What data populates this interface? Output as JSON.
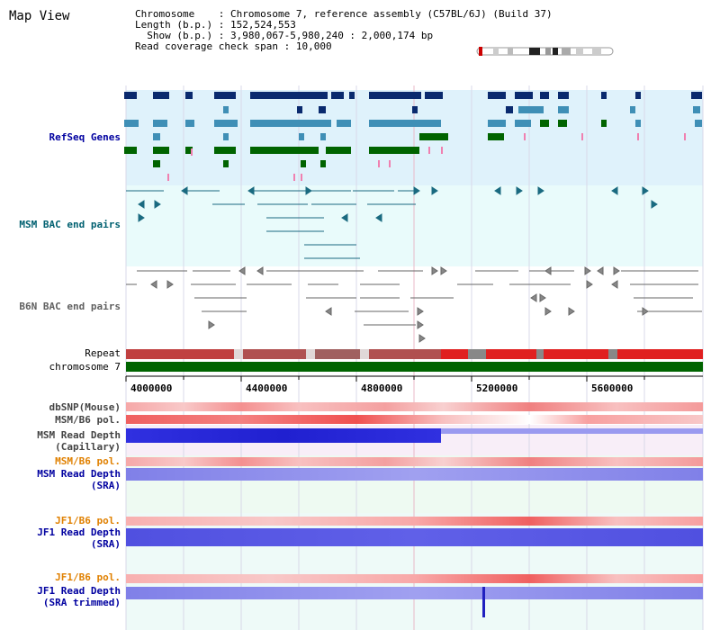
{
  "title": "Map View",
  "info": {
    "chrom_key": "Chromosome",
    "chrom_val": "Chromosome 7, reference assembly (C57BL/6J) (Build 37)",
    "length_key": "Length (b.p.)",
    "length_val": "152,524,553",
    "show_key": "Show (b.p.)",
    "show_val": "3,980,067-5,980,240 : 2,000,174 bp",
    "span_key": "Read coverage check span",
    "span_val": "10,000"
  },
  "tracks": {
    "refseq": "RefSeq Genes",
    "msm_bac": "MSM BAC end pairs",
    "b6n_bac": "B6N BAC end pairs",
    "repeat": "Repeat",
    "chromosome": "chromosome 7",
    "dbsnp": "dbSNP(Mouse)",
    "msm_b6_pol_1": "MSM/B6 pol.",
    "msm_depth_cap_1": "MSM Read Depth",
    "msm_depth_cap_2": "(Capillary)",
    "msm_b6_pol_2": "MSM/B6 pol.",
    "msm_depth_sra_1": "MSM Read Depth",
    "msm_depth_sra_2": "(SRA)",
    "jf1_pol_1": "JF1/B6 pol.",
    "jf1_depth_sra_1": "JF1 Read Depth",
    "jf1_depth_sra_2": "(SRA)",
    "jf1_pol_2": "JF1/B6 pol.",
    "jf1_depth_trim_1": "JF1 Read Depth",
    "jf1_depth_trim_2": "(SRA trimmed)"
  },
  "axis": {
    "ticks": [
      "4000000",
      "4400000",
      "4800000",
      "5200000",
      "5600000"
    ]
  },
  "colors": {
    "refseq_bg": "#dff2fb",
    "bac_bg": "#e9fbfb",
    "gene_dark": "#0a2a6e",
    "gene_mid": "#3f8fb6",
    "gene_green": "#006400",
    "msm_label": "#006070",
    "jf1_label": "#e08000",
    "depth_label": "#0000a0",
    "chromosome_bar": "#006400"
  }
}
